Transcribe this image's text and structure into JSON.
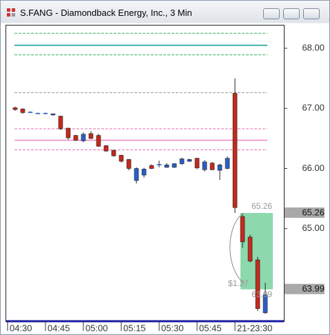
{
  "chart_data": {
    "type": "candlestick",
    "title": "S.FANG - Diamondback Energy, Inc., 3 Min",
    "categories": [
      null,
      null,
      null,
      null,
      null,
      null,
      null,
      null,
      null,
      null,
      null,
      null,
      null,
      null,
      null,
      null,
      null,
      null,
      null,
      null,
      null,
      null,
      null,
      null,
      null,
      null,
      null,
      null,
      null,
      null,
      null,
      null,
      null,
      null
    ],
    "open": [
      67.01,
      66.99,
      66.94,
      66.92,
      66.92,
      66.89,
      66.87,
      66.67,
      66.55,
      66.46,
      66.58,
      66.55,
      66.38,
      66.3,
      66.22,
      66.15,
      65.8,
      65.89,
      66.05,
      66.07,
      66.02,
      66.02,
      66.08,
      66.12,
      66.17,
      65.98,
      66.09,
      65.97,
      66.0,
      67.25,
      65.2,
      64.86,
      64.48,
      63.6
    ],
    "high": [
      67.03,
      67.0,
      66.95,
      66.93,
      66.93,
      66.91,
      66.88,
      66.68,
      66.56,
      66.6,
      66.62,
      66.58,
      66.39,
      66.32,
      66.23,
      66.16,
      66.02,
      66.01,
      66.07,
      66.13,
      66.09,
      66.09,
      66.18,
      66.16,
      66.18,
      66.14,
      66.11,
      66.08,
      66.2,
      67.5,
      65.24,
      64.9,
      64.53,
      64.1
    ],
    "low": [
      66.96,
      66.91,
      66.93,
      66.91,
      66.91,
      66.88,
      66.64,
      66.48,
      66.46,
      66.44,
      66.49,
      66.36,
      66.28,
      66.2,
      66.1,
      65.97,
      65.75,
      65.85,
      65.99,
      66.02,
      66.01,
      66.01,
      66.06,
      66.11,
      65.99,
      65.95,
      65.97,
      65.81,
      65.99,
      65.26,
      64.68,
      64.44,
      63.63,
      63.58
    ],
    "close": [
      66.98,
      66.93,
      66.94,
      66.92,
      66.92,
      66.91,
      66.66,
      66.51,
      66.47,
      66.57,
      66.5,
      66.37,
      66.29,
      66.21,
      66.12,
      66.0,
      66.0,
      65.99,
      66.0,
      66.07,
      66.06,
      66.08,
      66.16,
      66.15,
      66.01,
      66.11,
      65.98,
      66.06,
      66.17,
      65.35,
      64.78,
      64.46,
      63.67,
      63.9
    ],
    "up_color": "#2a5fc8",
    "down_color": "#c42a1c",
    "xlim": [
      -1.18,
      35.45
    ],
    "xticks": [
      {
        "value": -1,
        "label": "04:30"
      },
      {
        "value": 4,
        "label": "04:45"
      },
      {
        "value": 9,
        "label": "05:00"
      },
      {
        "value": 14,
        "label": "05:15"
      },
      {
        "value": 19,
        "label": "05:30"
      },
      {
        "value": 24,
        "label": "05:45"
      },
      {
        "value": 29,
        "label": "21-23:30"
      }
    ],
    "ylim": [
      63.46,
      68.39
    ],
    "yticks": [
      {
        "value": 65,
        "label": "65.00"
      },
      {
        "value": 66,
        "label": "66.00"
      },
      {
        "value": 67,
        "label": "67.00"
      },
      {
        "value": 68,
        "label": "68.00"
      }
    ],
    "levels": [
      {
        "value": 68.25,
        "color": "#2fb55a",
        "dash": true
      },
      {
        "value": 68.05,
        "color": "#16a394",
        "dash": false
      },
      {
        "value": 67.89,
        "color": "#2fb55a",
        "dash": true
      },
      {
        "value": 67.26,
        "color": "#9a9a9a",
        "dash": true
      },
      {
        "value": 66.66,
        "color": "#e06fb0",
        "dash": true
      },
      {
        "value": 66.47,
        "color": "#f08cc0",
        "dash": false
      },
      {
        "value": 66.31,
        "color": "#e06fb0",
        "dash": true
      }
    ],
    "price_markers": [
      {
        "value": 65.26,
        "label": "65.26"
      },
      {
        "value": 63.99,
        "label": "63.99"
      }
    ],
    "range_box": {
      "from": 30,
      "to": 33,
      "top": 65.26,
      "bottom": 63.99,
      "color": "#5cc98a",
      "label": "$1.27"
    }
  }
}
